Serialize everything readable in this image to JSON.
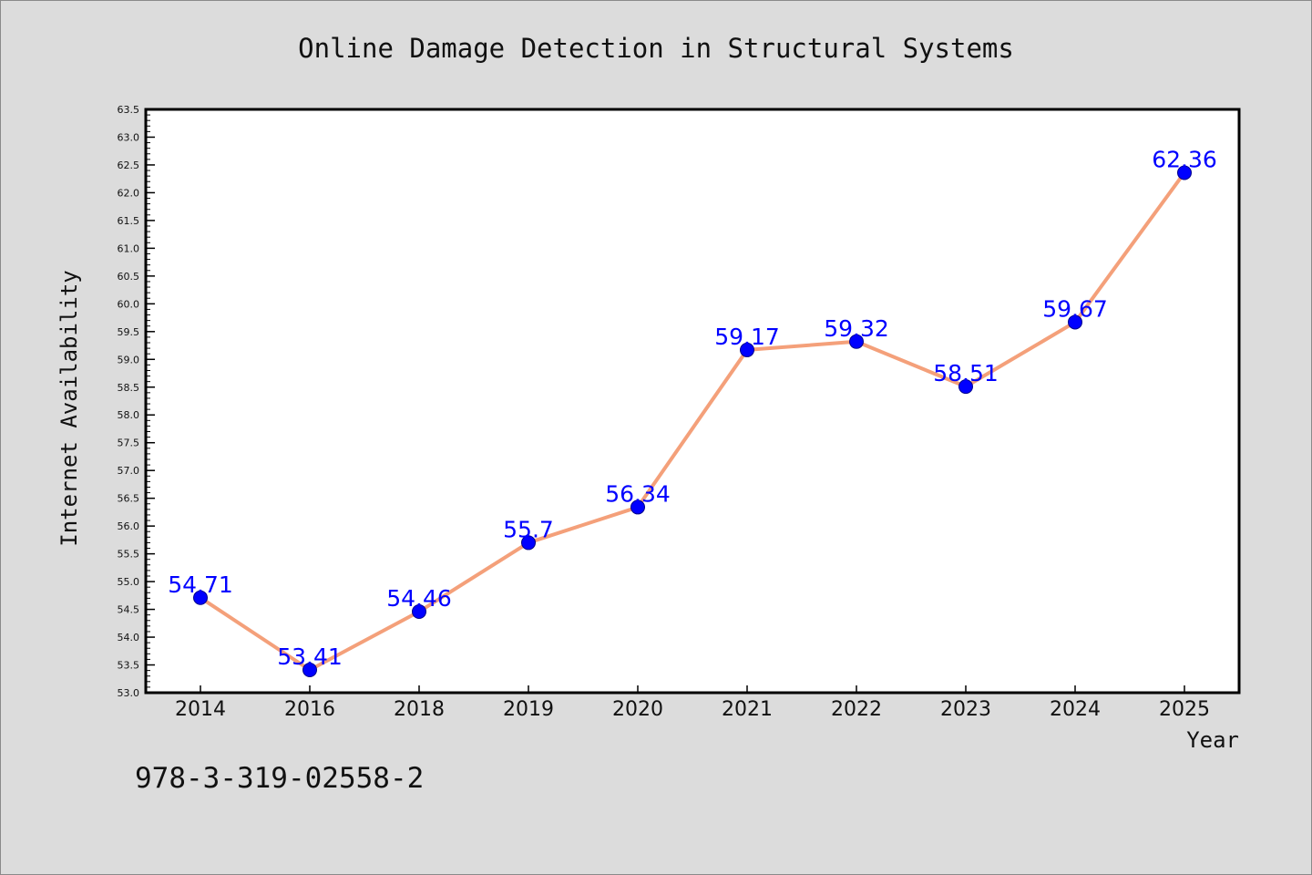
{
  "chart_data": {
    "type": "line",
    "title": "Online Damage Detection in Structural Systems",
    "xlabel": "Year",
    "ylabel": "Internet Availability",
    "categories": [
      "2014",
      "2016",
      "2018",
      "2019",
      "2020",
      "2021",
      "2022",
      "2023",
      "2024",
      "2025"
    ],
    "series": [
      {
        "values": [
          54.71,
          53.41,
          54.46,
          55.7,
          56.34,
          59.17,
          59.32,
          58.51,
          59.67,
          62.36
        ],
        "labels": [
          "54.71",
          "53.41",
          "54.46",
          "55.7",
          "56.34",
          "59.17",
          "59.32",
          "58.51",
          "59.67",
          "62.36"
        ]
      }
    ],
    "ylim": [
      53.0,
      63.5
    ],
    "yticks": [
      "53.0",
      "53.5",
      "54.0",
      "54.5",
      "55.0",
      "55.5",
      "56.0",
      "56.5",
      "57.0",
      "57.5",
      "58.0",
      "58.5",
      "59.0",
      "59.5",
      "60.0",
      "60.5",
      "61.0",
      "61.5",
      "62.0",
      "62.5",
      "63.0",
      "63.5"
    ],
    "grid": false,
    "colors": {
      "line": "#f4a07a",
      "marker": "#0000ff",
      "data_label": "#0000ff",
      "background": "#dcdcdc",
      "plot_background": "#ffffff"
    }
  },
  "footer": {
    "isbn": "978-3-319-02558-2"
  }
}
